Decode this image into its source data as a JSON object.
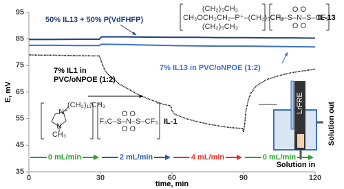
{
  "chart_data": {
    "type": "line",
    "x_label": "time, min",
    "y_label": "E, mV",
    "xlim": [
      0,
      120
    ],
    "ylim": [
      35,
      95
    ],
    "xticks": [
      0,
      30,
      60,
      90,
      120
    ],
    "yticks": [
      35,
      45,
      55,
      65,
      75,
      85,
      95
    ],
    "series": [
      {
        "name": "50% IL13 + 50% P(VdFHFP)",
        "color": "#1f3e7a",
        "x": [
          0,
          10,
          20,
          29.5,
          30.5,
          40,
          50,
          60,
          70,
          80,
          90,
          100,
          110,
          120
        ],
        "values": [
          84.8,
          84.8,
          84.9,
          84.9,
          85.8,
          85.8,
          85.7,
          85.6,
          85.6,
          85.5,
          85.5,
          85.4,
          85.4,
          85.3
        ]
      },
      {
        "name": "7% IL13 in PVC/oNPOE (1:2)",
        "color": "#3b6fc4",
        "x": [
          0,
          10,
          20,
          29.5,
          30.5,
          40,
          50,
          60,
          70,
          80,
          90,
          100,
          110,
          120
        ],
        "values": [
          82.6,
          82.6,
          82.5,
          82.5,
          83,
          82.9,
          82.7,
          82.5,
          82.4,
          82.3,
          82.3,
          82.2,
          82.1,
          82.0
        ]
      },
      {
        "name": "7% IL1 in\nPVC/oNPOE (1:2)",
        "color": "#000000",
        "x": [
          0,
          5,
          10,
          20,
          29.5,
          30,
          31,
          32,
          34,
          36,
          38,
          40,
          43,
          46,
          50,
          53,
          56,
          59.5,
          60,
          61,
          63,
          66,
          70,
          75,
          80,
          85,
          89.5,
          90,
          90.5,
          91,
          92,
          93,
          95,
          97,
          100,
          105,
          110,
          115,
          120
        ],
        "values": [
          79,
          78.9,
          78.9,
          78.7,
          78.6,
          77.5,
          75,
          73,
          71,
          69.5,
          68,
          67,
          65.5,
          64,
          62.5,
          61.5,
          60.5,
          59.8,
          58,
          56.8,
          56,
          55,
          54,
          53,
          52.2,
          51.6,
          51.3,
          50,
          53,
          58,
          62,
          64.5,
          67,
          68.3,
          69.8,
          71.2,
          72.3,
          73,
          73.6
        ]
      }
    ],
    "flow_periods": [
      {
        "label": "0 mL/min",
        "color": "#2ca02c",
        "start": 0,
        "end": 30
      },
      {
        "label": "2 mL/min",
        "color": "#2a5db0",
        "start": 30,
        "end": 60
      },
      {
        "label": "4 mL/min",
        "color": "#e8312a",
        "start": 60,
        "end": 90
      },
      {
        "label": "0 mL/min",
        "color": "#2ca02c",
        "start": 90,
        "end": 120
      }
    ],
    "il13_structure": {
      "label": "IL-13",
      "cation": [
        "(CH₂)₅CH₃",
        "CH₃OCH₂CH₂–P⁺–(CH₂)₅CH₃",
        "(CH₂)₅CH₃"
      ],
      "anion": [
        "O      O",
        "CF₃–S–N–S–CF₃",
        "O      O"
      ]
    },
    "il1_structure": {
      "label": "IL-1",
      "cation": [
        "(CH₂)₁₁CH₃",
        "N⁺",
        "N",
        "CH₃"
      ],
      "anion": [
        "O      O",
        "F₃C–S–N–S–CF₃",
        "O      O"
      ]
    },
    "device": {
      "electrode": "LrFRE",
      "inlet": "Solution in",
      "outlet": "Solution out"
    }
  }
}
